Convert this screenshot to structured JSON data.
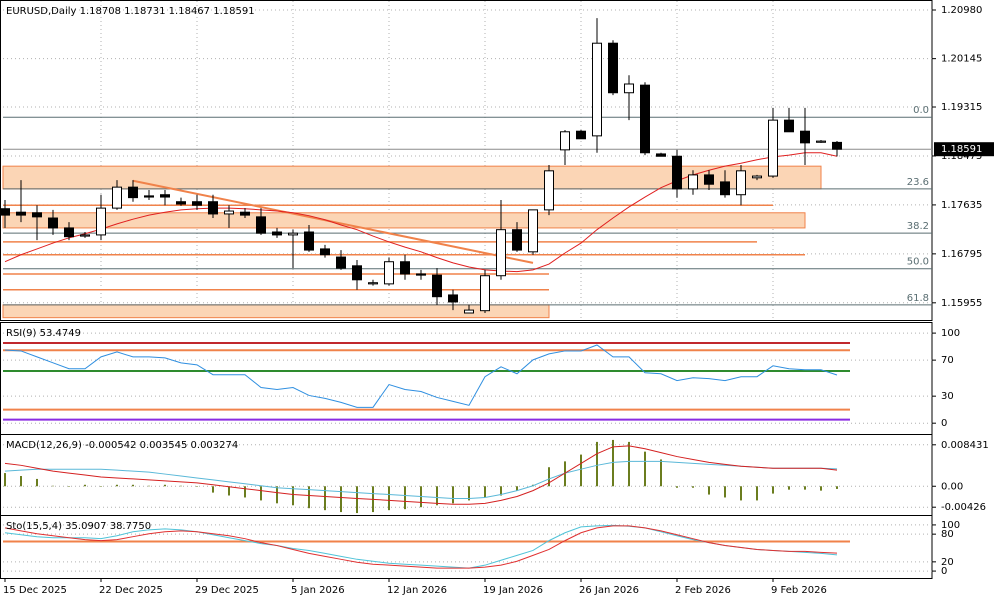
{
  "chart_data": {
    "type": "candlestick",
    "title": "EURUSD,Daily  1.18708 1.18731 1.18467 1.18591",
    "categories": [
      "15 Dec 2025",
      null,
      null,
      null,
      null,
      null,
      "22 Dec 2025",
      null,
      null,
      null,
      null,
      null,
      "29 Dec 2025",
      null,
      null,
      null,
      null,
      null,
      "5 Jan 2026",
      null,
      null,
      null,
      null,
      null,
      "12 Jan 2026",
      null,
      null,
      null,
      null,
      null,
      "19 Jan 2026",
      null,
      null,
      null,
      null,
      null,
      "26 Jan 2026",
      null,
      null,
      null,
      null,
      null,
      "2 Feb 2026",
      null,
      null,
      null,
      null,
      null,
      "9 Feb 2026",
      null,
      null,
      null,
      null
    ],
    "open": [
      1.1757,
      1.1751,
      1.175,
      1.1741,
      1.1724,
      1.171,
      1.1712,
      1.1758,
      1.1794,
      1.1779,
      1.1781,
      1.1769,
      1.1769,
      1.1769,
      1.1748,
      1.1751,
      1.1743,
      1.1717,
      1.1712,
      1.1717,
      1.1688,
      1.1674,
      1.1659,
      1.1628,
      1.1628,
      1.1666,
      1.1645,
      1.1643,
      1.1609,
      1.1578,
      1.1582,
      1.1642,
      1.1721,
      1.1683,
      1.1755,
      1.1858,
      1.189,
      1.1882,
      1.2041,
      1.1956,
      1.1969,
      1.1851,
      1.1847,
      1.1791,
      1.1815,
      1.1803,
      1.1781,
      1.181,
      1.1813,
      1.1909,
      1.189,
      1.1871,
      1.18708
    ],
    "high": [
      1.1772,
      1.1806,
      1.1763,
      1.1755,
      1.1734,
      1.1717,
      1.1781,
      1.1806,
      1.1806,
      1.1789,
      1.1789,
      1.1776,
      1.1781,
      1.1781,
      1.1763,
      1.1758,
      1.1758,
      1.1724,
      1.1721,
      1.1729,
      1.1695,
      1.1686,
      1.1669,
      1.1635,
      1.1673,
      1.1678,
      1.1652,
      1.1655,
      1.1618,
      1.1592,
      1.1652,
      1.1772,
      1.1734,
      1.1755,
      1.1832,
      1.1892,
      1.1892,
      1.2084,
      1.2046,
      1.1986,
      1.1974,
      1.1853,
      1.1858,
      1.1823,
      1.1823,
      1.1823,
      1.1832,
      1.1815,
      1.193,
      1.193,
      1.193,
      1.1875,
      1.18731
    ],
    "low": [
      1.1724,
      1.1734,
      1.1703,
      1.1712,
      1.1703,
      1.1707,
      1.1703,
      1.1755,
      1.1769,
      1.1772,
      1.1763,
      1.1762,
      1.1755,
      1.1741,
      1.1724,
      1.1741,
      1.1712,
      1.1707,
      1.1655,
      1.1683,
      1.1673,
      1.1652,
      1.1618,
      1.1625,
      1.1625,
      1.1635,
      1.1635,
      1.1592,
      1.1583,
      1.1578,
      1.1578,
      1.1635,
      1.1683,
      1.1678,
      1.1746,
      1.1832,
      1.1877,
      1.1853,
      1.1952,
      1.1909,
      1.1849,
      1.1847,
      1.1776,
      1.1781,
      1.1789,
      1.1776,
      1.1763,
      1.1806,
      1.181,
      1.1889,
      1.1832,
      1.187,
      1.18467
    ],
    "close": [
      1.1746,
      1.1746,
      1.1743,
      1.1724,
      1.1709,
      1.1712,
      1.1758,
      1.1794,
      1.1776,
      1.1777,
      1.1777,
      1.1765,
      1.1763,
      1.1748,
      1.1753,
      1.1746,
      1.1715,
      1.1712,
      1.1715,
      1.1686,
      1.1678,
      1.1655,
      1.1635,
      1.163,
      1.1666,
      1.1645,
      1.1643,
      1.1606,
      1.1597,
      1.1583,
      1.1642,
      1.1721,
      1.1686,
      1.1755,
      1.1822,
      1.1889,
      1.1877,
      1.2041,
      1.1956,
      1.1971,
      1.1853,
      1.1847,
      1.1791,
      1.1815,
      1.1799,
      1.1781,
      1.1822,
      1.1813,
      1.1909,
      1.1889,
      1.187,
      1.1873,
      1.18591
    ],
    "up_color": "#ffffff",
    "down_color": "#000000",
    "ylim": [
      1.1566,
      1.211
    ],
    "yticks": [
      {
        "value": 1.2098,
        "label": "1.20980"
      },
      {
        "value": 1.20145,
        "label": "1.20145"
      },
      {
        "value": 1.19315,
        "label": "1.19315"
      },
      {
        "value": 1.18475,
        "label": "1.18475"
      },
      {
        "value": 1.17635,
        "label": "1.17635"
      },
      {
        "value": 1.16795,
        "label": "1.16795"
      },
      {
        "value": 1.15955,
        "label": "1.15955"
      }
    ],
    "grid": true,
    "ma": {
      "color": "#e02020",
      "values": [
        1.1666,
        1.1678,
        1.1688,
        1.1698,
        1.1707,
        1.1714,
        1.1722,
        1.1731,
        1.1739,
        1.1746,
        1.1751,
        1.1755,
        1.1757,
        1.1758,
        1.1758,
        1.1757,
        1.1755,
        1.1753,
        1.175,
        1.1745,
        1.1738,
        1.1729,
        1.1721,
        1.171,
        1.17,
        1.1691,
        1.1683,
        1.1673,
        1.1664,
        1.1657,
        1.1652,
        1.165,
        1.1649,
        1.1652,
        1.1662,
        1.1681,
        1.1698,
        1.1721,
        1.1741,
        1.176,
        1.1777,
        1.1793,
        1.1805,
        1.1815,
        1.1823,
        1.183,
        1.1835,
        1.1841,
        1.1846,
        1.1849,
        1.1853,
        1.1853,
        1.1847
      ]
    },
    "fibonacci": {
      "color": "#5a6e72",
      "levels": [
        {
          "label": "0.0",
          "value": 1.1914
        },
        {
          "label": "23.6",
          "value": 1.1791
        },
        {
          "label": "38.2",
          "value": 1.1715
        },
        {
          "label": "50.0",
          "value": 1.1654
        },
        {
          "label": "61.8",
          "value": 1.1592
        }
      ]
    },
    "zones": {
      "color": "#fbd5b5",
      "border": "#f0824a",
      "items": [
        {
          "low": 1.1791,
          "high": 1.183,
          "end": 51
        },
        {
          "low": 1.1724,
          "high": 1.175,
          "end": 50
        },
        {
          "low": 1.157,
          "high": 1.1592,
          "end": 34
        }
      ]
    },
    "hlines": {
      "color": "#f0824a",
      "items": [
        {
          "value": 1.1763,
          "end": 48
        },
        {
          "value": 1.17,
          "end": 47
        },
        {
          "value": 1.1678,
          "end": 50
        },
        {
          "value": 1.1645,
          "end": 34
        },
        {
          "value": 1.1618,
          "end": 34
        }
      ]
    },
    "trendline": {
      "color": "#f0824a",
      "x": [
        8,
        33
      ],
      "y": [
        1.1805,
        1.1664
      ]
    },
    "panels": [
      {
        "type": "line",
        "title": "RSI(9) 53.4749",
        "ylim": [
          -12,
          109
        ],
        "yticks": [
          100,
          70,
          30,
          0
        ],
        "levels": [
          {
            "value": 89,
            "color": "#c0282d"
          },
          {
            "value": 81,
            "color": "#f0824a"
          },
          {
            "value": 58,
            "color": "#2e8b2e"
          },
          {
            "value": 15,
            "color": "#f0824a"
          },
          {
            "value": 4,
            "color": "#8a2be2"
          }
        ],
        "series": [
          {
            "color": "#2f8fe0",
            "values": [
              81.3,
              80.2,
              73.6,
              67.0,
              60.4,
              60.4,
              73.6,
              79.1,
              73.6,
              73.6,
              72.5,
              67.0,
              64.8,
              53.8,
              53.8,
              53.8,
              39.6,
              37.4,
              39.6,
              30.8,
              27.5,
              23.1,
              17.6,
              17.6,
              42.9,
              37.4,
              35.2,
              28.6,
              24.2,
              19.8,
              51.6,
              62.6,
              54.9,
              70.3,
              76.9,
              80.2,
              80.2,
              86.8,
              73.6,
              73.6,
              56.0,
              54.9,
              47.3,
              50.5,
              49.5,
              47.3,
              51.6,
              51.6,
              63.7,
              60.4,
              59.3,
              59.3,
              53.4749
            ]
          }
        ]
      },
      {
        "type": "macd",
        "title": "MACD(12,26,9) -0.000542 0.003545 0.003274",
        "ylim": [
          -0.005846,
          0.010017
        ],
        "yticks": [
          0.008431,
          {
            "value": 0,
            "label": "0.00"
          },
          -0.00426
        ],
        "histogram": {
          "color": "#6b7d1f",
          "values": [
            0.00268,
            0.00208,
            0.00149,
            0.0001,
            -0.0001,
            0.0003,
            -0.0001,
            0.0003,
            0.0003,
            0.0001,
            0.0003,
            0.0001,
            -0.0001,
            -0.00129,
            -0.00188,
            -0.00228,
            -0.00288,
            -0.00347,
            -0.00387,
            -0.00446,
            -0.00486,
            -0.00525,
            -0.00545,
            -0.00525,
            -0.00486,
            -0.00466,
            -0.00426,
            -0.00387,
            -0.00347,
            -0.00288,
            -0.00228,
            -0.00188,
            -0.00089,
            0.0003,
            0.00387,
            0.00506,
            0.00644,
            0.00902,
            0.00942,
            0.00902,
            0.00704,
            0.00545,
            -0.0003,
            -0.0003,
            -0.00169,
            -0.00228,
            -0.00288,
            -0.00288,
            -0.00149,
            -0.00069,
            -0.00069,
            -0.00089,
            -0.000542
          ]
        },
        "series": [
          {
            "color": "#5ab8d8",
            "values": [
              0.00307,
              0.00327,
              0.00347,
              0.00347,
              0.00347,
              0.00347,
              0.00347,
              0.00327,
              0.00307,
              0.00287,
              0.00248,
              0.00208,
              0.00168,
              0.00129,
              0.00089,
              0.0005,
              0.0001,
              -0.0003,
              -0.0005,
              -0.00069,
              -0.00089,
              -0.00109,
              -0.00129,
              -0.00149,
              -0.00168,
              -0.00188,
              -0.00208,
              -0.00228,
              -0.00248,
              -0.00248,
              -0.00228,
              -0.00168,
              -0.00089,
              0.0001,
              0.00149,
              0.00267,
              0.00347,
              0.00426,
              0.00485,
              0.00505,
              0.00505,
              0.00505,
              0.00485,
              0.00465,
              0.00446,
              0.00426,
              0.00406,
              0.00386,
              0.00366,
              0.00366,
              0.00366,
              0.00366,
              0.003545
            ]
          },
          {
            "color": "#d42020",
            "values": [
              0.00465,
              0.00426,
              0.00366,
              0.00307,
              0.00267,
              0.00228,
              0.00188,
              0.00168,
              0.00149,
              0.00129,
              0.00109,
              0.00089,
              0.00069,
              0.0003,
              -0.0001,
              -0.0005,
              -0.00089,
              -0.00129,
              -0.00168,
              -0.00188,
              -0.00208,
              -0.00228,
              -0.00248,
              -0.00267,
              -0.00287,
              -0.00307,
              -0.00327,
              -0.00347,
              -0.00366,
              -0.00366,
              -0.00347,
              -0.00287,
              -0.00208,
              -0.00089,
              0.00069,
              0.00267,
              0.00465,
              0.00663,
              0.00802,
              0.00822,
              0.00762,
              0.00683,
              0.00604,
              0.00545,
              0.00485,
              0.00446,
              0.00406,
              0.00386,
              0.00366,
              0.00366,
              0.00366,
              0.00366,
              0.003274
            ]
          }
        ]
      },
      {
        "type": "line",
        "title": "Sto(15,5,4) 35.0907 38.7750",
        "ylim": [
          -15,
          115
        ],
        "yticks": [
          100,
          80,
          20,
          0
        ],
        "levels": [
          {
            "value": 64,
            "color": "#f0824a"
          }
        ],
        "series": [
          {
            "color": "#4fc3d8",
            "values": [
              83.0,
              78.7,
              74.5,
              72.3,
              72.3,
              72.3,
              70.2,
              76.6,
              85.1,
              89.4,
              91.5,
              89.4,
              85.1,
              78.7,
              72.3,
              66.0,
              59.6,
              55.3,
              48.9,
              44.7,
              38.3,
              31.9,
              25.5,
              21.3,
              17.0,
              14.9,
              12.8,
              10.6,
              8.5,
              6.4,
              12.8,
              23.4,
              34.0,
              44.7,
              66.0,
              83.0,
              95.7,
              98.0,
              99.0,
              97.0,
              93.6,
              85.1,
              76.6,
              68.1,
              61.7,
              55.3,
              51.1,
              46.8,
              44.7,
              42.6,
              40.4,
              38.3,
              35.0907
            ]
          },
          {
            "color": "#e03030",
            "values": [
              93.6,
              87.2,
              80.9,
              76.6,
              72.3,
              68.1,
              66.0,
              68.1,
              74.5,
              80.9,
              85.1,
              87.2,
              85.1,
              80.9,
              76.6,
              70.2,
              61.7,
              55.3,
              46.8,
              38.3,
              31.9,
              25.5,
              19.1,
              14.9,
              12.8,
              10.6,
              8.5,
              6.4,
              6.4,
              6.4,
              8.5,
              12.8,
              21.3,
              34.0,
              46.8,
              66.0,
              83.0,
              93.6,
              97.9,
              97.9,
              93.6,
              87.2,
              78.7,
              70.2,
              61.7,
              55.3,
              51.1,
              46.8,
              44.7,
              42.6,
              42.6,
              40.4,
              38.775
            ]
          }
        ]
      }
    ]
  }
}
